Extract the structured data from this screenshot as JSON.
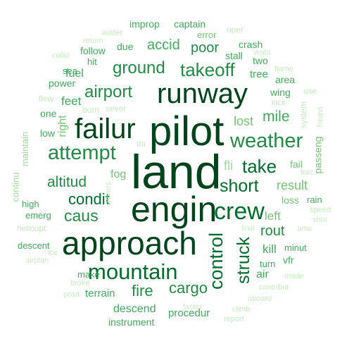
{
  "words": [
    {
      "id": "pilot",
      "text": "pilot"
    },
    {
      "id": "land",
      "text": "land"
    },
    {
      "id": "engin",
      "text": "engin"
    },
    {
      "id": "approach",
      "text": "approach"
    },
    {
      "id": "runway",
      "text": "runway"
    },
    {
      "id": "failur",
      "text": "failur"
    },
    {
      "id": "crew",
      "text": "crew"
    },
    {
      "id": "mountain",
      "text": "mountain"
    },
    {
      "id": "attempt",
      "text": "attempt"
    },
    {
      "id": "weather",
      "text": "weather"
    },
    {
      "id": "airport",
      "text": "airport"
    },
    {
      "id": "takeoff",
      "text": "takeoff"
    },
    {
      "id": "ground",
      "text": "ground"
    },
    {
      "id": "short",
      "text": "short"
    },
    {
      "id": "take",
      "text": "take"
    },
    {
      "id": "control",
      "text": "control"
    },
    {
      "id": "struck",
      "text": "struck"
    },
    {
      "id": "condit",
      "text": "condit"
    },
    {
      "id": "altitud",
      "text": "altitud"
    },
    {
      "id": "caus",
      "text": "caus"
    },
    {
      "id": "cargo",
      "text": "cargo"
    },
    {
      "id": "fire",
      "text": "fire"
    },
    {
      "id": "mile",
      "text": "mile"
    },
    {
      "id": "accid",
      "text": "accid"
    },
    {
      "id": "poor",
      "text": "poor"
    },
    {
      "id": "rout",
      "text": "rout"
    },
    {
      "id": "result",
      "text": "result"
    },
    {
      "id": "lost",
      "text": "lost"
    },
    {
      "id": "fli",
      "text": "fli"
    },
    {
      "id": "feet",
      "text": "feet"
    },
    {
      "id": "fuel",
      "text": "fuel"
    },
    {
      "id": "right",
      "text": "right"
    },
    {
      "id": "fog",
      "text": "fog"
    },
    {
      "id": "kill",
      "text": "kill"
    },
    {
      "id": "left",
      "text": "left"
    },
    {
      "id": "descend",
      "text": "descend"
    },
    {
      "id": "terrain",
      "text": "terrain"
    },
    {
      "id": "air",
      "text": "air"
    },
    {
      "id": "procedur",
      "text": "procedur"
    },
    {
      "id": "instrument",
      "text": "instrument"
    },
    {
      "id": "improp",
      "text": "improp"
    },
    {
      "id": "captain",
      "text": "captain"
    },
    {
      "id": "error",
      "text": "error"
    },
    {
      "id": "crash",
      "text": "crash"
    },
    {
      "id": "stall",
      "text": "stall"
    },
    {
      "id": "two",
      "text": "two"
    },
    {
      "id": "tree",
      "text": "tree"
    },
    {
      "id": "area",
      "text": "area"
    },
    {
      "id": "wing",
      "text": "wing"
    },
    {
      "id": "due",
      "text": "due"
    },
    {
      "id": "follow",
      "text": "follow"
    },
    {
      "id": "hit",
      "text": "hit"
    },
    {
      "id": "sea",
      "text": "sea"
    },
    {
      "id": "power",
      "text": "power"
    },
    {
      "id": "one",
      "text": "one"
    },
    {
      "id": "low",
      "text": "low"
    },
    {
      "id": "high",
      "text": "high"
    },
    {
      "id": "emerg",
      "text": "emerg"
    },
    {
      "id": "descent",
      "text": "descent"
    },
    {
      "id": "fail",
      "text": "fail"
    },
    {
      "id": "loss",
      "text": "loss"
    },
    {
      "id": "rain",
      "text": "rain"
    },
    {
      "id": "minut",
      "text": "minut"
    },
    {
      "id": "turn",
      "text": "turn"
    },
    {
      "id": "vfr",
      "text": "vfr"
    },
    {
      "id": "make",
      "text": "make"
    },
    {
      "id": "passeng",
      "text": "passeng"
    },
    {
      "id": "continu",
      "text": "continu"
    },
    {
      "id": "maintain",
      "text": "maintain"
    },
    {
      "id": "water",
      "text": "water"
    },
    {
      "id": "oper",
      "text": "oper"
    },
    {
      "id": "return",
      "text": "return"
    },
    {
      "id": "visibl",
      "text": "visibl"
    },
    {
      "id": "collid",
      "text": "collid"
    },
    {
      "id": "flame",
      "text": "flame"
    },
    {
      "id": "use",
      "text": "use"
    },
    {
      "id": "lack",
      "text": "lack"
    },
    {
      "id": "flew",
      "text": "flew"
    },
    {
      "id": "burn",
      "text": "burn"
    },
    {
      "id": "sever",
      "text": "sever"
    },
    {
      "id": "system",
      "text": "system"
    },
    {
      "id": "heavi",
      "text": "heavi"
    },
    {
      "id": "thi",
      "text": "thi"
    },
    {
      "id": "forc",
      "text": "forc"
    },
    {
      "id": "advers",
      "text": "advers"
    },
    {
      "id": "speed",
      "text": "speed"
    },
    {
      "id": "shot",
      "text": "shot"
    },
    {
      "id": "final",
      "text": "final"
    },
    {
      "id": "time",
      "text": "time"
    },
    {
      "id": "helicopt",
      "text": "helicopt"
    },
    {
      "id": "ice",
      "text": "ice"
    },
    {
      "id": "airplan",
      "text": "airplan"
    },
    {
      "id": "made",
      "text": "made"
    },
    {
      "id": "broke",
      "text": "broke"
    },
    {
      "id": "contribut",
      "text": "contribut"
    },
    {
      "id": "posit",
      "text": "posit"
    },
    {
      "id": "aboard",
      "text": "aboard"
    },
    {
      "id": "factor",
      "text": "factor"
    },
    {
      "id": "climb",
      "text": "climb"
    },
    {
      "id": "report",
      "text": "report"
    }
  ]
}
